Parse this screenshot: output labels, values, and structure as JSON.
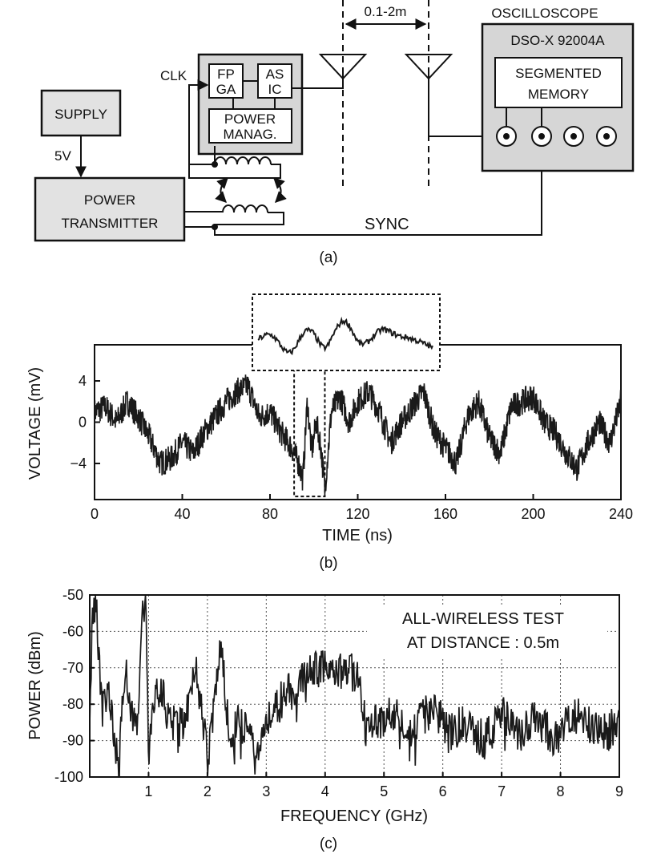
{
  "panel_a": {
    "label": "(a)",
    "supply": "SUPPLY",
    "supply_voltage": "5V",
    "power_transmitter": [
      "POWER",
      "TRANSMITTER"
    ],
    "clk": "CLK",
    "fpga": [
      "FP",
      "GA"
    ],
    "asic": [
      "AS",
      "IC"
    ],
    "power_manag": [
      "POWER",
      "MANAG."
    ],
    "distance": "0.1-2m",
    "oscilloscope": "OSCILLOSCOPE",
    "model": "DSO-X 92004A",
    "segmented_memory": [
      "SEGMENTED",
      "MEMORY"
    ],
    "sync": "SYNC"
  },
  "panel_b_label": "(b)",
  "panel_c_label": "(c)",
  "colors": {
    "trace": "#1a1a1a",
    "box_fill": "#e2e2e2",
    "grid": "#555555"
  },
  "chart_data": [
    {
      "type": "line",
      "xlabel": "TIME (ns)",
      "ylabel": "VOLTAGE (mV)",
      "xlim": [
        0,
        240
      ],
      "ylim": [
        -7.5,
        7.5
      ],
      "xticks": [
        0,
        40,
        80,
        120,
        160,
        200,
        240
      ],
      "yticks": [
        4,
        0,
        -4
      ],
      "ytick_labels": [
        "4",
        "0",
        "−4"
      ],
      "grid": false,
      "inset": {
        "x_range": [
          91,
          105
        ],
        "note": "zoomed pulse region"
      },
      "series": [
        {
          "x": [
            0,
            5,
            10,
            15,
            20,
            25,
            30,
            35,
            40,
            45,
            50,
            55,
            60,
            65,
            70,
            75,
            80,
            85,
            90,
            93,
            95,
            97,
            99,
            101,
            103,
            105,
            108,
            112,
            116,
            120,
            125,
            130,
            135,
            140,
            145,
            150,
            155,
            160,
            165,
            170,
            175,
            180,
            185,
            190,
            195,
            200,
            205,
            210,
            215,
            220,
            225,
            230,
            235,
            240
          ],
          "values": [
            1,
            1.5,
            0,
            2,
            0.5,
            -1.5,
            -4,
            -3.5,
            -2,
            -3,
            -1,
            0.5,
            2,
            3,
            3.5,
            0.5,
            1,
            -1,
            -2.5,
            -4,
            -5.5,
            2,
            -3,
            0,
            -2,
            -6.5,
            1,
            2.5,
            0,
            2,
            3,
            1,
            -2,
            0,
            1.5,
            3,
            -1,
            -2.5,
            -4,
            0.5,
            2,
            -1.5,
            -3,
            1.5,
            2,
            2.5,
            0,
            -1,
            -3,
            -4.5,
            -2,
            0,
            -2,
            2
          ]
        }
      ]
    },
    {
      "type": "line",
      "xlabel": "FREQUENCY (GHz)",
      "ylabel": "POWER (dBm)",
      "xlim": [
        0,
        9
      ],
      "ylim": [
        -100,
        -50
      ],
      "xticks": [
        1,
        2,
        3,
        4,
        5,
        6,
        7,
        8,
        9
      ],
      "yticks": [
        -50,
        -60,
        -70,
        -80,
        -90,
        -100
      ],
      "grid": true,
      "annotation": [
        "ALL-WIRELESS TEST",
        "AT DISTANCE : 0.5m"
      ],
      "series": [
        {
          "x": [
            0,
            0.05,
            0.1,
            0.15,
            0.2,
            0.3,
            0.4,
            0.5,
            0.55,
            0.6,
            0.7,
            0.8,
            0.9,
            0.95,
            1.0,
            1.1,
            1.2,
            1.3,
            1.5,
            1.7,
            1.8,
            1.9,
            2.0,
            2.1,
            2.15,
            2.2,
            2.25,
            2.3,
            2.4,
            2.5,
            2.7,
            2.9,
            3.0,
            3.2,
            3.5,
            3.7,
            3.9,
            4.0,
            4.2,
            4.4,
            4.6,
            4.65,
            4.7,
            4.9,
            5.2,
            5.5,
            5.8,
            6.1,
            6.4,
            6.7,
            7.0,
            7.3,
            7.6,
            7.9,
            8.2,
            8.5,
            8.8,
            9.0
          ],
          "values": [
            -80,
            -57,
            -50,
            -65,
            -82,
            -75,
            -85,
            -100,
            -80,
            -70,
            -80,
            -88,
            -55,
            -50,
            -92,
            -80,
            -75,
            -82,
            -88,
            -78,
            -68,
            -80,
            -95,
            -82,
            -75,
            -65,
            -62,
            -78,
            -90,
            -85,
            -88,
            -92,
            -85,
            -80,
            -75,
            -72,
            -70,
            -68,
            -72,
            -70,
            -74,
            -82,
            -88,
            -85,
            -82,
            -88,
            -80,
            -88,
            -85,
            -90,
            -83,
            -88,
            -84,
            -90,
            -82,
            -86,
            -88,
            -84
          ]
        }
      ]
    }
  ]
}
